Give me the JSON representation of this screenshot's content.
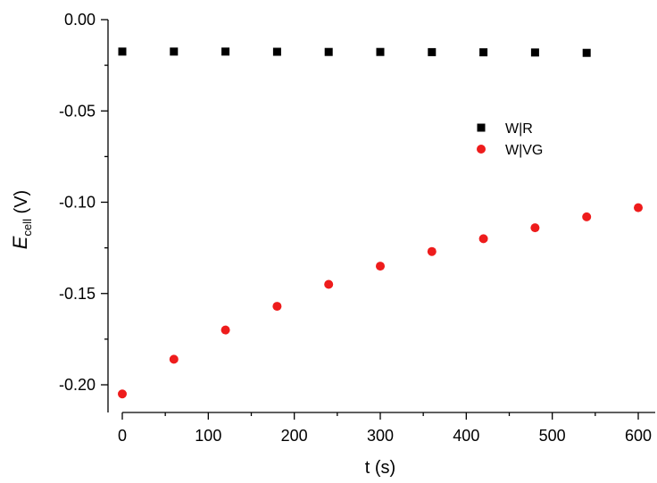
{
  "chart_data": {
    "type": "scatter",
    "title": "",
    "xlabel": "t (s)",
    "ylabel": {
      "symbol": "E",
      "subscript": "cell",
      "unit": " (V)"
    },
    "xlim": [
      -5,
      610
    ],
    "ylim": [
      -0.22,
      0.0
    ],
    "xticks": [
      0,
      100,
      200,
      300,
      400,
      500,
      600
    ],
    "xtick_labels": [
      "0",
      "100",
      "200",
      "300",
      "400",
      "500",
      "600"
    ],
    "yticks": [
      0.0,
      -0.05,
      -0.1,
      -0.15,
      -0.2
    ],
    "ytick_labels": [
      "0.00",
      "-0.05",
      "-0.10",
      "-0.15",
      "-0.20"
    ],
    "grid": false,
    "legend_position": "upper-right",
    "series": [
      {
        "name": "W|R",
        "marker": "square",
        "color": "#000000",
        "x": [
          0,
          60,
          120,
          180,
          240,
          300,
          360,
          420,
          480,
          540
        ],
        "y": [
          -0.0175,
          -0.0175,
          -0.0175,
          -0.0176,
          -0.0177,
          -0.0177,
          -0.0178,
          -0.0179,
          -0.018,
          -0.0182
        ]
      },
      {
        "name": "W|VG",
        "marker": "circle",
        "color": "#ee1c1c",
        "x": [
          0,
          60,
          120,
          180,
          240,
          300,
          360,
          420,
          480,
          540,
          600
        ],
        "y": [
          -0.205,
          -0.186,
          -0.17,
          -0.157,
          -0.145,
          -0.135,
          -0.127,
          -0.12,
          -0.114,
          -0.108,
          -0.103
        ]
      }
    ]
  }
}
